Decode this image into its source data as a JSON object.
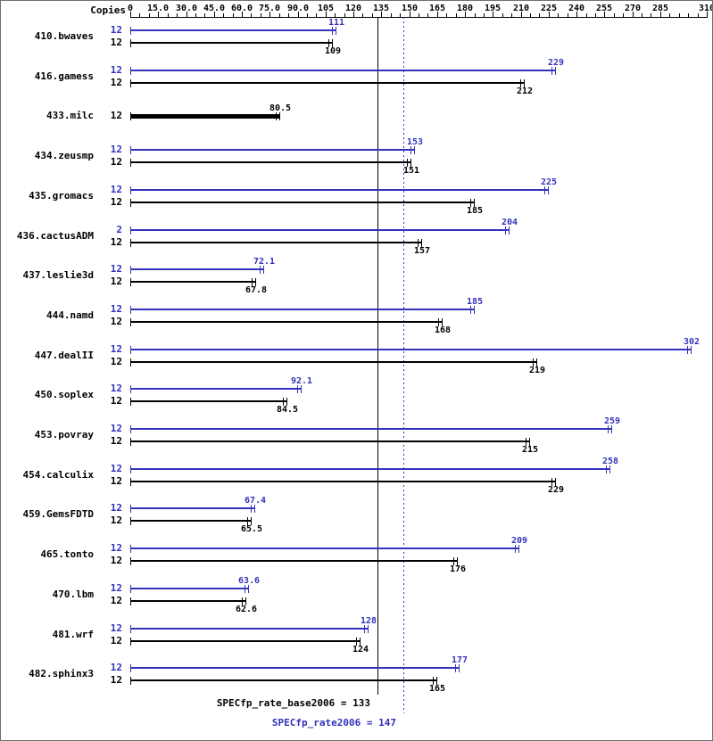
{
  "header": {
    "copies_label": "Copies"
  },
  "chart_data": {
    "type": "bar",
    "orientation": "horizontal",
    "axis": {
      "min": 0,
      "max": 310,
      "minor_step": 5,
      "labels": [
        {
          "v": 0,
          "t": "0"
        },
        {
          "v": 15,
          "t": "15.0"
        },
        {
          "v": 30,
          "t": "30.0"
        },
        {
          "v": 45,
          "t": "45.0"
        },
        {
          "v": 60,
          "t": "60.0"
        },
        {
          "v": 75,
          "t": "75.0"
        },
        {
          "v": 90,
          "t": "90.0"
        },
        {
          "v": 105,
          "t": "105"
        },
        {
          "v": 120,
          "t": "120"
        },
        {
          "v": 135,
          "t": "135"
        },
        {
          "v": 150,
          "t": "150"
        },
        {
          "v": 165,
          "t": "165"
        },
        {
          "v": 180,
          "t": "180"
        },
        {
          "v": 195,
          "t": "195"
        },
        {
          "v": 210,
          "t": "210"
        },
        {
          "v": 225,
          "t": "225"
        },
        {
          "v": 240,
          "t": "240"
        },
        {
          "v": 255,
          "t": "255"
        },
        {
          "v": 270,
          "t": "270"
        },
        {
          "v": 285,
          "t": "285"
        },
        {
          "v": 310,
          "t": "310"
        }
      ]
    },
    "colors": {
      "peak": "#3333bb",
      "base": "#000000"
    },
    "benchmarks": [
      {
        "name": "410.bwaves",
        "rows": [
          {
            "copies": "12",
            "value": 111,
            "label": "111",
            "kind": "peak"
          },
          {
            "copies": "12",
            "value": 109,
            "label": "109",
            "kind": "base"
          }
        ]
      },
      {
        "name": "416.gamess",
        "rows": [
          {
            "copies": "12",
            "value": 229,
            "label": "229",
            "kind": "peak"
          },
          {
            "copies": "12",
            "value": 212,
            "label": "212",
            "kind": "base"
          }
        ]
      },
      {
        "name": "433.milc",
        "rows": [
          {
            "copies": "12",
            "value": 80.5,
            "label": "80.5",
            "kind": "base",
            "thick": true
          }
        ]
      },
      {
        "name": "434.zeusmp",
        "rows": [
          {
            "copies": "12",
            "value": 153,
            "label": "153",
            "kind": "peak"
          },
          {
            "copies": "12",
            "value": 151,
            "label": "151",
            "kind": "base"
          }
        ]
      },
      {
        "name": "435.gromacs",
        "rows": [
          {
            "copies": "12",
            "value": 225,
            "label": "225",
            "kind": "peak"
          },
          {
            "copies": "12",
            "value": 185,
            "label": "185",
            "kind": "base"
          }
        ]
      },
      {
        "name": "436.cactusADM",
        "rows": [
          {
            "copies": "2",
            "value": 204,
            "label": "204",
            "kind": "peak"
          },
          {
            "copies": "12",
            "value": 157,
            "label": "157",
            "kind": "base"
          }
        ]
      },
      {
        "name": "437.leslie3d",
        "rows": [
          {
            "copies": "12",
            "value": 72.1,
            "label": "72.1",
            "kind": "peak"
          },
          {
            "copies": "12",
            "value": 67.8,
            "label": "67.8",
            "kind": "base"
          }
        ]
      },
      {
        "name": "444.namd",
        "rows": [
          {
            "copies": "12",
            "value": 185,
            "label": "185",
            "kind": "peak"
          },
          {
            "copies": "12",
            "value": 168,
            "label": "168",
            "kind": "base"
          }
        ]
      },
      {
        "name": "447.dealII",
        "rows": [
          {
            "copies": "12",
            "value": 302,
            "label": "302",
            "kind": "peak"
          },
          {
            "copies": "12",
            "value": 219,
            "label": "219",
            "kind": "base"
          }
        ]
      },
      {
        "name": "450.soplex",
        "rows": [
          {
            "copies": "12",
            "value": 92.1,
            "label": "92.1",
            "kind": "peak"
          },
          {
            "copies": "12",
            "value": 84.5,
            "label": "84.5",
            "kind": "base"
          }
        ]
      },
      {
        "name": "453.povray",
        "rows": [
          {
            "copies": "12",
            "value": 259,
            "label": "259",
            "kind": "peak"
          },
          {
            "copies": "12",
            "value": 215,
            "label": "215",
            "kind": "base"
          }
        ]
      },
      {
        "name": "454.calculix",
        "rows": [
          {
            "copies": "12",
            "value": 258,
            "label": "258",
            "kind": "peak"
          },
          {
            "copies": "12",
            "value": 229,
            "label": "229",
            "kind": "base"
          }
        ]
      },
      {
        "name": "459.GemsFDTD",
        "rows": [
          {
            "copies": "12",
            "value": 67.4,
            "label": "67.4",
            "kind": "peak"
          },
          {
            "copies": "12",
            "value": 65.5,
            "label": "65.5",
            "kind": "base"
          }
        ]
      },
      {
        "name": "465.tonto",
        "rows": [
          {
            "copies": "12",
            "value": 209,
            "label": "209",
            "kind": "peak"
          },
          {
            "copies": "12",
            "value": 176,
            "label": "176",
            "kind": "base"
          }
        ]
      },
      {
        "name": "470.lbm",
        "rows": [
          {
            "copies": "12",
            "value": 63.6,
            "label": "63.6",
            "kind": "peak"
          },
          {
            "copies": "12",
            "value": 62.6,
            "label": "62.6",
            "kind": "base"
          }
        ]
      },
      {
        "name": "481.wrf",
        "rows": [
          {
            "copies": "12",
            "value": 128,
            "label": "128",
            "kind": "peak"
          },
          {
            "copies": "12",
            "value": 124,
            "label": "124",
            "kind": "base"
          }
        ]
      },
      {
        "name": "482.sphinx3",
        "rows": [
          {
            "copies": "12",
            "value": 177,
            "label": "177",
            "kind": "peak"
          },
          {
            "copies": "12",
            "value": 165,
            "label": "165",
            "kind": "base"
          }
        ]
      }
    ],
    "reference": {
      "base": {
        "value": 133,
        "label": "SPECfp_rate_base2006 = 133"
      },
      "peak": {
        "value": 147,
        "label": "SPECfp_rate2006 = 147"
      }
    }
  }
}
